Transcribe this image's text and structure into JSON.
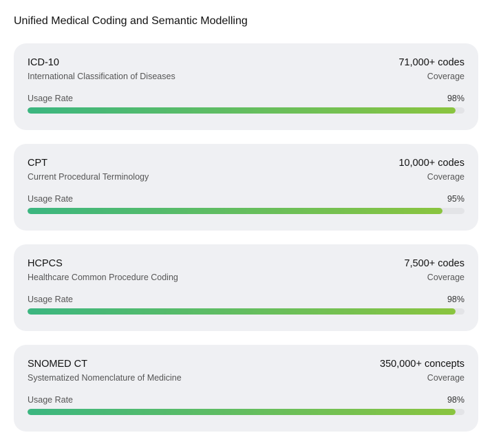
{
  "header": {
    "title": "Unified Medical Coding and Semantic Modelling"
  },
  "cards": [
    {
      "name": "ICD-10",
      "description": "International Classification of Diseases",
      "coverage": "71,000+ codes",
      "coverage_label": "Coverage",
      "usage_label": "Usage Rate",
      "usage": {
        "value": 98,
        "label": "98%"
      }
    },
    {
      "name": "CPT",
      "description": "Current Procedural Terminology",
      "coverage": "10,000+ codes",
      "coverage_label": "Coverage",
      "usage_label": "Usage Rate",
      "usage": {
        "value": 95,
        "label": "95%"
      }
    },
    {
      "name": "HCPCS",
      "description": "Healthcare Common Procedure Coding",
      "coverage": "7,500+ codes",
      "coverage_label": "Coverage",
      "usage_label": "Usage Rate",
      "usage": {
        "value": 98,
        "label": "98%"
      }
    },
    {
      "name": "SNOMED CT",
      "description": "Systematized Nomenclature of Medicine",
      "coverage": "350,000+ concepts",
      "coverage_label": "Coverage",
      "usage_label": "Usage Rate",
      "usage": {
        "value": 98,
        "label": "98%"
      }
    }
  ]
}
